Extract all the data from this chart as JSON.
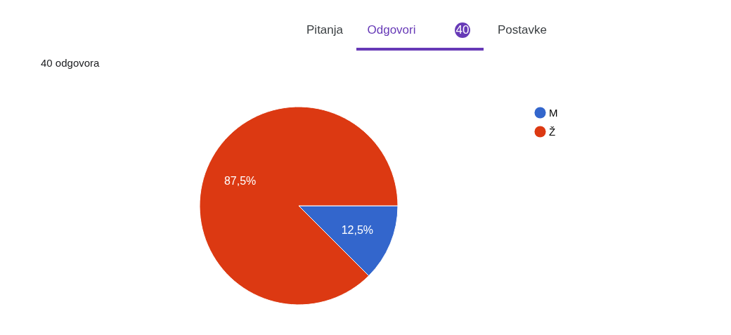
{
  "chart_data": {
    "type": "pie",
    "subtitle": "40 odgovora",
    "categories": [
      "M",
      "Ž"
    ],
    "values": [
      12.5,
      87.5
    ],
    "colors": [
      "#3366cc",
      "#dc3912"
    ],
    "value_labels": [
      "12,5%",
      "87,5%"
    ],
    "legend": "top right",
    "annotations": [
      "Pitanja",
      "Odgovori",
      "40",
      "Postavke"
    ]
  }
}
